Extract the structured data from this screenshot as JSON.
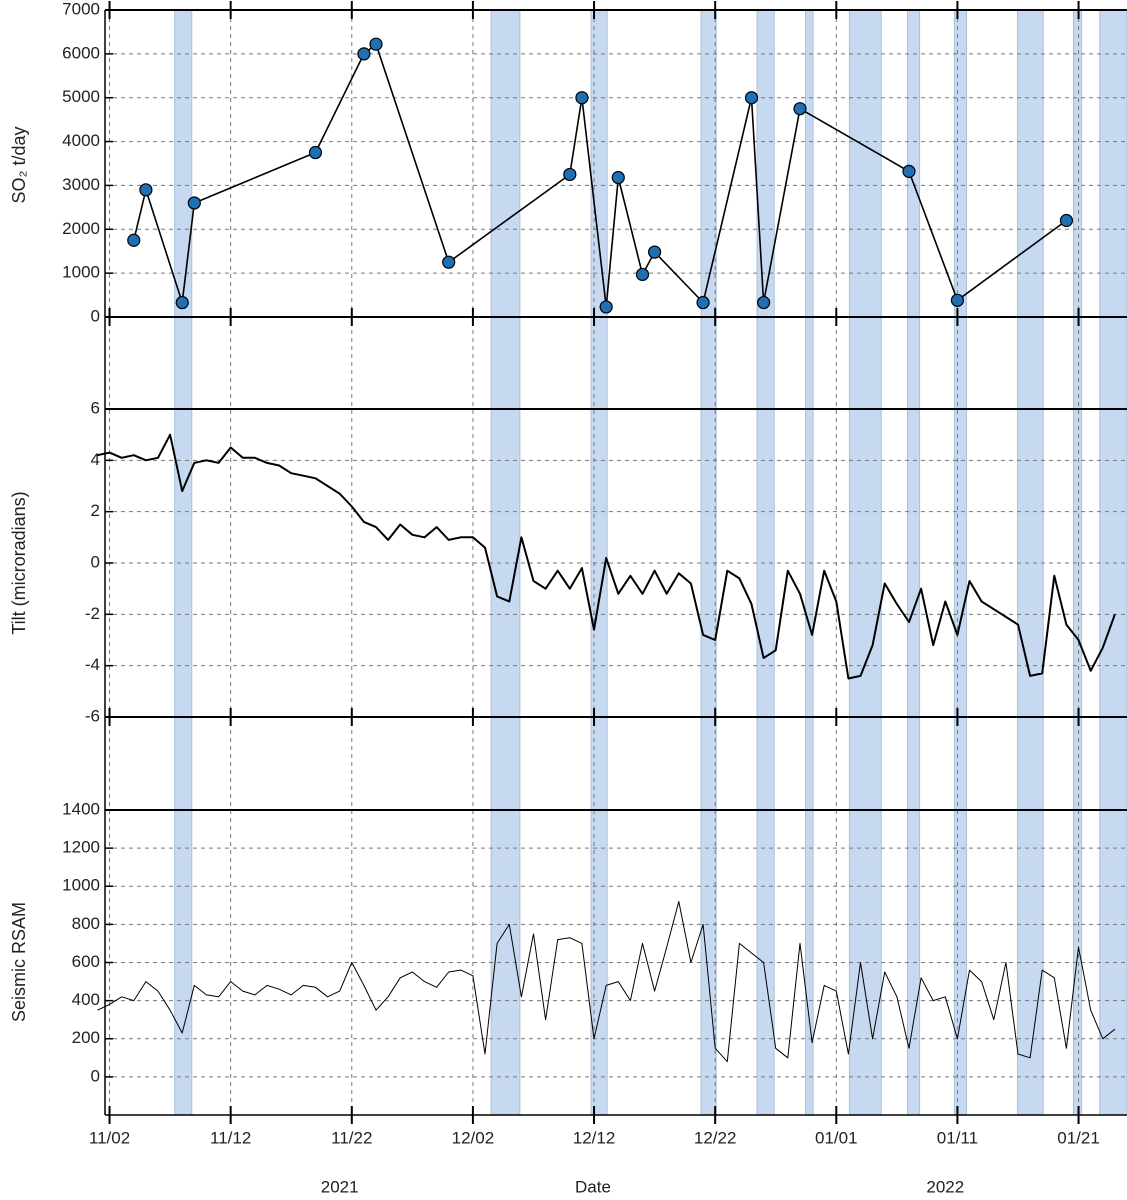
{
  "chart_data": [
    {
      "type": "line",
      "ylabel": "SO₂  t/day",
      "ylim": [
        0,
        7000
      ],
      "yticks": [
        0,
        1000,
        2000,
        3000,
        4000,
        5000,
        6000,
        7000
      ],
      "grid": true,
      "markers": true,
      "x": [
        "2021-11-04",
        "2021-11-05",
        "2021-11-08",
        "2021-11-09",
        "2021-11-19",
        "2021-11-23",
        "2021-11-24",
        "2021-11-30",
        "2021-12-10",
        "2021-12-11",
        "2021-12-13",
        "2021-12-14",
        "2021-12-16",
        "2021-12-17",
        "2021-12-21",
        "2021-12-25",
        "2021-12-26",
        "2021-12-29",
        "2022-01-07",
        "2022-01-11",
        "2022-01-20"
      ],
      "series": [
        {
          "color": "#1f6fb5",
          "values": [
            1750,
            2900,
            330,
            2600,
            3750,
            6000,
            6220,
            1250,
            3250,
            5000,
            230,
            3180,
            970,
            1480,
            330,
            5000,
            330,
            4750,
            3320,
            380,
            2200
          ]
        }
      ]
    },
    {
      "type": "line",
      "ylabel": "Tilt (microradians)",
      "ylim": [
        -6,
        6
      ],
      "yticks": [
        -6,
        -4,
        -2,
        0,
        2,
        4,
        6
      ],
      "grid": true,
      "markers": false,
      "x": [
        "2021-11-01",
        "2021-11-02",
        "2021-11-03",
        "2021-11-04",
        "2021-11-05",
        "2021-11-06",
        "2021-11-07",
        "2021-11-08",
        "2021-11-09",
        "2021-11-10",
        "2021-11-11",
        "2021-11-12",
        "2021-11-13",
        "2021-11-14",
        "2021-11-15",
        "2021-11-16",
        "2021-11-17",
        "2021-11-18",
        "2021-11-19",
        "2021-11-20",
        "2021-11-21",
        "2021-11-22",
        "2021-11-23",
        "2021-11-24",
        "2021-11-25",
        "2021-11-26",
        "2021-11-27",
        "2021-11-28",
        "2021-11-29",
        "2021-11-30",
        "2021-12-01",
        "2021-12-02",
        "2021-12-03",
        "2021-12-04",
        "2021-12-05",
        "2021-12-06",
        "2021-12-07",
        "2021-12-08",
        "2021-12-09",
        "2021-12-10",
        "2021-12-11",
        "2021-12-12",
        "2021-12-13",
        "2021-12-14",
        "2021-12-15",
        "2021-12-16",
        "2021-12-17",
        "2021-12-18",
        "2021-12-19",
        "2021-12-20",
        "2021-12-21",
        "2021-12-22",
        "2021-12-23",
        "2021-12-24",
        "2021-12-25",
        "2021-12-26",
        "2021-12-27",
        "2021-12-28",
        "2021-12-29",
        "2021-12-30",
        "2021-12-31",
        "2022-01-01",
        "2022-01-02",
        "2022-01-03",
        "2022-01-04",
        "2022-01-05",
        "2022-01-06",
        "2022-01-07",
        "2022-01-08",
        "2022-01-09",
        "2022-01-10",
        "2022-01-11",
        "2022-01-12",
        "2022-01-13",
        "2022-01-14",
        "2022-01-15",
        "2022-01-16",
        "2022-01-17",
        "2022-01-18",
        "2022-01-19",
        "2022-01-20",
        "2022-01-21",
        "2022-01-22",
        "2022-01-23",
        "2022-01-24"
      ],
      "series": [
        {
          "color": "#000000",
          "values": [
            4.2,
            4.3,
            4.1,
            4.2,
            4.0,
            4.1,
            5.0,
            2.8,
            3.9,
            4.0,
            3.9,
            4.5,
            4.1,
            4.1,
            3.9,
            3.8,
            3.5,
            3.4,
            3.3,
            3.0,
            2.7,
            2.2,
            1.6,
            1.4,
            0.9,
            1.5,
            1.1,
            1.0,
            1.4,
            0.9,
            1.0,
            1.0,
            0.6,
            -1.3,
            -1.5,
            1.0,
            -0.7,
            -1.0,
            -0.3,
            -1.0,
            -0.2,
            -2.6,
            0.2,
            -1.2,
            -0.5,
            -1.2,
            -0.3,
            -1.2,
            -0.4,
            -0.8,
            -2.8,
            -3.0,
            -0.3,
            -0.6,
            -1.6,
            -3.7,
            -3.4,
            -0.3,
            -1.2,
            -2.8,
            -0.3,
            -1.5,
            -4.5,
            -4.4,
            -3.2,
            -0.8,
            -1.6,
            -2.3,
            -1.0,
            -3.2,
            -1.5,
            -2.8,
            -0.7,
            -1.5,
            -1.8,
            -2.1,
            -2.4,
            -4.4,
            -4.3,
            -0.5,
            -2.4,
            -3.0,
            -4.2,
            -3.3,
            -2.0
          ]
        }
      ]
    },
    {
      "type": "line",
      "ylabel": "Seismic RSAM",
      "ylim": [
        -200,
        1400
      ],
      "yticks": [
        0,
        200,
        400,
        600,
        800,
        1000,
        1200,
        1400
      ],
      "grid": true,
      "markers": false,
      "x": [
        "2021-11-01",
        "2021-11-02",
        "2021-11-03",
        "2021-11-04",
        "2021-11-05",
        "2021-11-06",
        "2021-11-07",
        "2021-11-08",
        "2021-11-09",
        "2021-11-10",
        "2021-11-11",
        "2021-11-12",
        "2021-11-13",
        "2021-11-14",
        "2021-11-15",
        "2021-11-16",
        "2021-11-17",
        "2021-11-18",
        "2021-11-19",
        "2021-11-20",
        "2021-11-21",
        "2021-11-22",
        "2021-11-23",
        "2021-11-24",
        "2021-11-25",
        "2021-11-26",
        "2021-11-27",
        "2021-11-28",
        "2021-11-29",
        "2021-11-30",
        "2021-12-01",
        "2021-12-02",
        "2021-12-03",
        "2021-12-04",
        "2021-12-05",
        "2021-12-06",
        "2021-12-07",
        "2021-12-08",
        "2021-12-09",
        "2021-12-10",
        "2021-12-11",
        "2021-12-12",
        "2021-12-13",
        "2021-12-14",
        "2021-12-15",
        "2021-12-16",
        "2021-12-17",
        "2021-12-18",
        "2021-12-19",
        "2021-12-20",
        "2021-12-21",
        "2021-12-22",
        "2021-12-23",
        "2021-12-24",
        "2021-12-25",
        "2021-12-26",
        "2021-12-27",
        "2021-12-28",
        "2021-12-29",
        "2021-12-30",
        "2021-12-31",
        "2022-01-01",
        "2022-01-02",
        "2022-01-03",
        "2022-01-04",
        "2022-01-05",
        "2022-01-06",
        "2022-01-07",
        "2022-01-08",
        "2022-01-09",
        "2022-01-10",
        "2022-01-11",
        "2022-01-12",
        "2022-01-13",
        "2022-01-14",
        "2022-01-15",
        "2022-01-16",
        "2022-01-17",
        "2022-01-18",
        "2022-01-19",
        "2022-01-20",
        "2022-01-21",
        "2022-01-22",
        "2022-01-23",
        "2022-01-24"
      ],
      "series": [
        {
          "color": "#000000",
          "values": [
            350,
            380,
            420,
            400,
            500,
            450,
            350,
            230,
            480,
            430,
            420,
            500,
            450,
            430,
            480,
            460,
            430,
            480,
            470,
            420,
            450,
            600,
            480,
            350,
            420,
            520,
            550,
            500,
            470,
            550,
            560,
            530,
            120,
            700,
            800,
            420,
            750,
            300,
            720,
            730,
            700,
            200,
            480,
            500,
            400,
            700,
            450,
            680,
            920,
            600,
            800,
            150,
            80,
            700,
            650,
            600,
            150,
            100,
            700,
            180,
            480,
            450,
            120,
            600,
            200,
            550,
            420,
            150,
            520,
            400,
            420,
            200,
            560,
            500,
            300,
            600,
            120,
            100,
            560,
            520,
            150,
            680,
            350,
            200,
            250
          ]
        }
      ]
    }
  ],
  "x_axis": {
    "label": "Date",
    "xlim": [
      "2021-11-01 15:00",
      "2022-01-25 00:00"
    ],
    "xticks": [
      {
        "value": "2021-11-02",
        "label": "11/02"
      },
      {
        "value": "2021-11-12",
        "label": "11/12"
      },
      {
        "value": "2021-11-22",
        "label": "11/22"
      },
      {
        "value": "2021-12-02",
        "label": "12/02"
      },
      {
        "value": "2021-12-12",
        "label": "12/12"
      },
      {
        "value": "2021-12-22",
        "label": "12/22"
      },
      {
        "value": "2022-01-01",
        "label": "01/01"
      },
      {
        "value": "2022-01-11",
        "label": "01/11"
      },
      {
        "value": "2022-01-21",
        "label": "01/21"
      }
    ],
    "year_labels": [
      {
        "value": "2021-11-21",
        "label": "2021"
      },
      {
        "value": "2022-01-10",
        "label": "2022"
      }
    ]
  },
  "highlight_color": "#c6d9f0",
  "highlight_periods": [
    [
      "2021-11-07 09:00",
      "2021-11-08 19:00"
    ],
    [
      "2021-12-03 12:00",
      "2021-12-05 21:00"
    ],
    [
      "2021-12-11 18:00",
      "2021-12-13 02:00"
    ],
    [
      "2021-12-20 20:00",
      "2021-12-22 02:00"
    ],
    [
      "2021-12-25 11:00",
      "2021-12-26 21:00"
    ],
    [
      "2021-12-29 11:00",
      "2021-12-30 02:00"
    ],
    [
      "2022-01-02 02:00",
      "2022-01-04 17:00"
    ],
    [
      "2022-01-06 21:00",
      "2022-01-07 21:00"
    ],
    [
      "2022-01-10 18:00",
      "2022-01-11 18:00"
    ],
    [
      "2022-01-15 23:00",
      "2022-01-18 02:00"
    ],
    [
      "2022-01-20 14:00",
      "2022-01-21 06:00"
    ],
    [
      "2022-01-22 18:00",
      "2022-01-25 00:00"
    ]
  ]
}
